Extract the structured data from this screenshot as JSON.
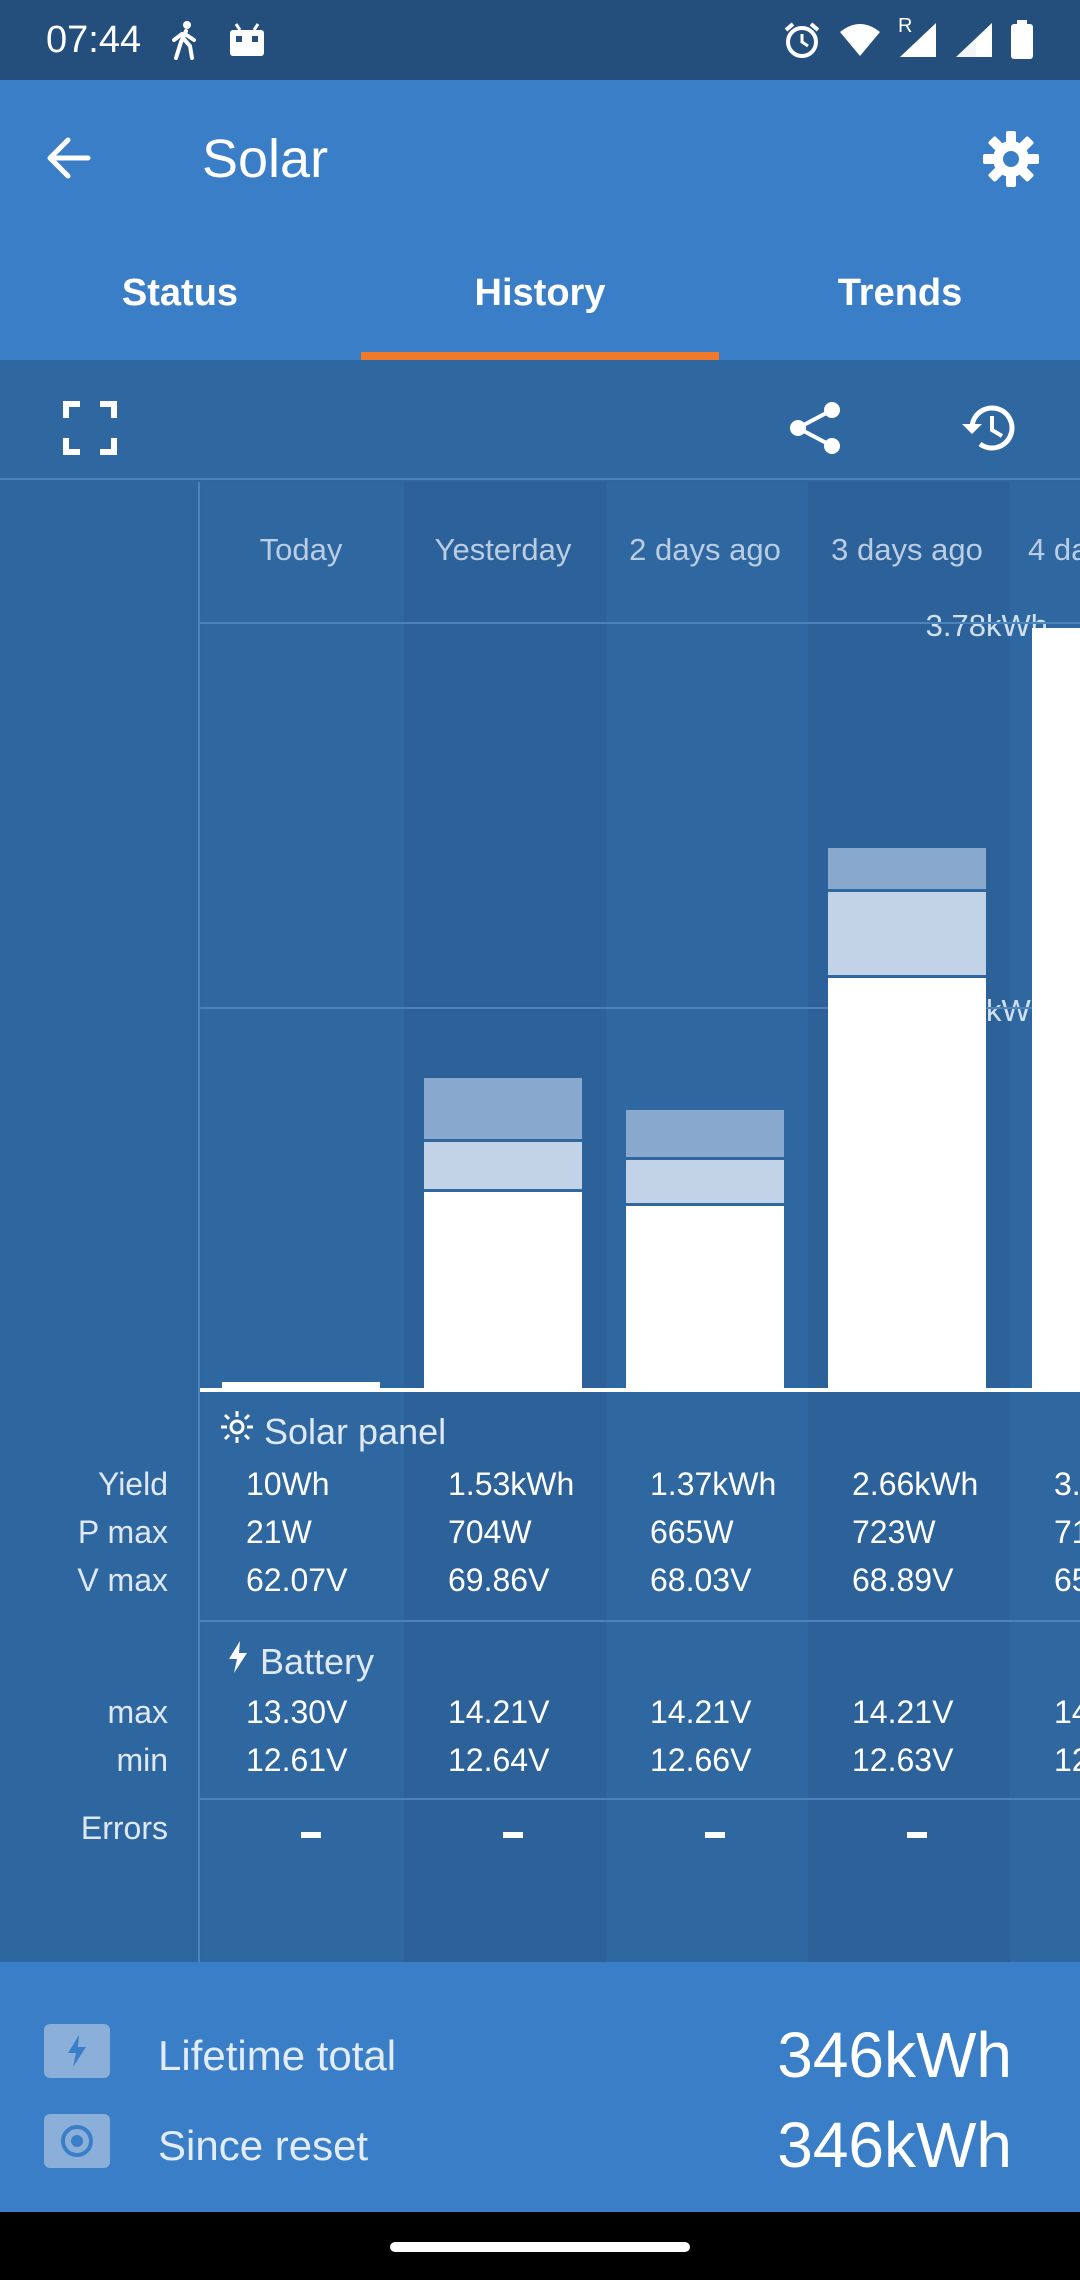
{
  "status_bar": {
    "time": "07:44",
    "left_icons": [
      "walking-person-icon",
      "app-icon"
    ],
    "right_icons": [
      "alarm-icon",
      "wifi-icon",
      "cell-signal-roaming-icon",
      "cell-signal-icon",
      "battery-icon"
    ],
    "roaming_mark": "R"
  },
  "app_bar": {
    "title": "Solar",
    "back_icon": "arrow-back-icon",
    "settings_icon": "gear-icon",
    "accent": "#f07a2a",
    "bar_color": "#3b7ec8"
  },
  "tabs": [
    {
      "label": "Status",
      "active": false
    },
    {
      "label": "History",
      "active": true
    },
    {
      "label": "Trends",
      "active": false
    }
  ],
  "toolbar": {
    "icons": [
      "fullscreen-icon",
      "share-icon",
      "history-restore-icon"
    ]
  },
  "chart": {
    "y_axis_labels": [
      "3.78kWh",
      "1.89kWh"
    ],
    "y_max_kwh": 3.78,
    "days": [
      {
        "header": "Today",
        "bar_kwh": 0.01
      },
      {
        "header": "Yesterday",
        "bar_kwh": 1.53
      },
      {
        "header": "2 days ago",
        "bar_kwh": 1.37
      },
      {
        "header": "3 days ago",
        "bar_kwh": 2.66
      },
      {
        "header": "4 da",
        "bar_kwh": 3.78
      }
    ]
  },
  "solar_panel": {
    "title": "Solar panel",
    "icon": "sun-icon",
    "row_labels": [
      "Yield",
      "P max",
      "V max"
    ],
    "values": [
      [
        "10Wh",
        "21W",
        "62.07V"
      ],
      [
        "1.53kWh",
        "704W",
        "69.86V"
      ],
      [
        "1.37kWh",
        "665W",
        "68.03V"
      ],
      [
        "2.66kWh",
        "723W",
        "68.89V"
      ],
      [
        "3.",
        "71",
        "65"
      ]
    ]
  },
  "battery": {
    "title": "Battery",
    "icon": "lightning-icon",
    "row_labels": [
      "max",
      "min"
    ],
    "values": [
      [
        "13.30V",
        "12.61V"
      ],
      [
        "14.21V",
        "12.64V"
      ],
      [
        "14.21V",
        "12.66V"
      ],
      [
        "14.21V",
        "12.63V"
      ],
      [
        "14",
        "12"
      ]
    ]
  },
  "errors": {
    "label": "Errors",
    "values": [
      "–",
      "–",
      "–",
      "–"
    ]
  },
  "footer": {
    "rows": [
      {
        "icon": "lightning-badge-icon",
        "label": "Lifetime total",
        "value": "346kWh"
      },
      {
        "icon": "reset-badge-icon",
        "label": "Since reset",
        "value": "346kWh"
      }
    ]
  }
}
